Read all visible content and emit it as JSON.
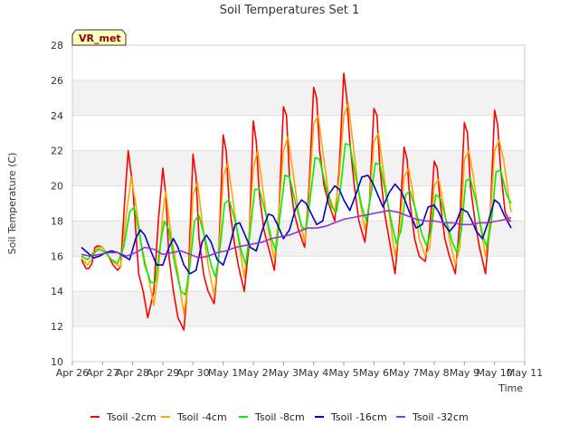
{
  "chart_data": {
    "type": "line",
    "title": "Soil Temperatures Set 1",
    "xlabel": "Time",
    "ylabel": "Soil Temperature (C)",
    "station_label": "VR_met",
    "ylim": [
      10,
      28
    ],
    "yticks": [
      10,
      12,
      14,
      16,
      18,
      20,
      22,
      24,
      26,
      28
    ],
    "xlim": [
      0,
      15
    ],
    "xticks": [
      "Apr 26",
      "Apr 27",
      "Apr 28",
      "Apr 29",
      "Apr 30",
      "May 1",
      "May 2",
      "May 3",
      "May 4",
      "May 5",
      "May 6",
      "May 7",
      "May 8",
      "May 9",
      "May 10",
      "May 11"
    ],
    "legend_position": "bottom",
    "grid": "alternating horizontal bands",
    "series": [
      {
        "name": "Tsoil -2cm",
        "color": "#ff0000",
        "x": [
          0.3,
          0.45,
          0.55,
          0.65,
          0.75,
          0.85,
          1.0,
          1.2,
          1.35,
          1.5,
          1.6,
          1.75,
          1.85,
          2.0,
          2.1,
          2.2,
          2.35,
          2.5,
          2.7,
          2.85,
          3.0,
          3.1,
          3.2,
          3.35,
          3.5,
          3.7,
          3.85,
          4.0,
          4.1,
          4.2,
          4.35,
          4.5,
          4.7,
          4.85,
          5.0,
          5.1,
          5.2,
          5.35,
          5.5,
          5.7,
          5.85,
          6.0,
          6.1,
          6.2,
          6.35,
          6.5,
          6.7,
          6.85,
          7.0,
          7.1,
          7.2,
          7.35,
          7.5,
          7.7,
          7.85,
          8.0,
          8.1,
          8.2,
          8.35,
          8.5,
          8.7,
          8.85,
          9.0,
          9.1,
          9.2,
          9.35,
          9.5,
          9.7,
          9.85,
          10.0,
          10.1,
          10.2,
          10.35,
          10.5,
          10.7,
          10.85,
          11.0,
          11.1,
          11.2,
          11.35,
          11.5,
          11.7,
          11.85,
          12.0,
          12.1,
          12.2,
          12.35,
          12.5,
          12.7,
          12.85,
          13.0,
          13.1,
          13.2,
          13.35,
          13.5,
          13.7,
          13.85,
          14.0,
          14.1,
          14.2,
          14.35,
          14.5,
          14.55
        ],
        "values": [
          15.8,
          15.3,
          15.3,
          15.6,
          16.5,
          16.6,
          16.5,
          16.0,
          15.5,
          15.2,
          15.4,
          19.5,
          22.0,
          20.0,
          17.5,
          15.0,
          14.0,
          12.5,
          14.0,
          18.0,
          21.0,
          19.5,
          16.0,
          14.0,
          12.5,
          11.8,
          15.0,
          21.8,
          20.5,
          17.0,
          15.0,
          14.0,
          13.3,
          16.0,
          22.9,
          22.0,
          19.0,
          17.0,
          15.5,
          14.0,
          16.5,
          23.7,
          22.5,
          19.5,
          17.5,
          16.5,
          15.2,
          18.5,
          24.5,
          24.0,
          20.5,
          18.5,
          17.5,
          16.5,
          20.0,
          25.6,
          25.0,
          22.0,
          20.0,
          19.0,
          18.0,
          21.0,
          26.4,
          25.0,
          22.5,
          20.0,
          18.0,
          16.8,
          19.0,
          24.4,
          24.0,
          21.0,
          18.5,
          17.0,
          15.0,
          18.0,
          22.2,
          21.5,
          19.0,
          17.0,
          16.0,
          15.7,
          17.5,
          21.4,
          21.0,
          19.0,
          17.0,
          16.0,
          15.0,
          18.0,
          23.6,
          23.0,
          20.0,
          18.0,
          16.5,
          15.0,
          18.0,
          24.3,
          23.5,
          21.0,
          18.5,
          18.0,
          18.0
        ]
      },
      {
        "name": "Tsoil -4cm",
        "color": "#ffa500",
        "x": [
          0.3,
          0.5,
          0.7,
          0.85,
          1.0,
          1.2,
          1.4,
          1.6,
          1.8,
          1.95,
          2.1,
          2.3,
          2.5,
          2.7,
          2.85,
          3.0,
          3.1,
          3.25,
          3.5,
          3.7,
          3.85,
          4.0,
          4.15,
          4.3,
          4.5,
          4.7,
          4.85,
          5.0,
          5.15,
          5.3,
          5.5,
          5.7,
          5.85,
          6.0,
          6.15,
          6.3,
          6.5,
          6.7,
          6.85,
          7.0,
          7.15,
          7.3,
          7.5,
          7.7,
          7.85,
          8.0,
          8.15,
          8.3,
          8.5,
          8.7,
          8.85,
          9.0,
          9.15,
          9.3,
          9.5,
          9.7,
          9.85,
          10.0,
          10.15,
          10.3,
          10.5,
          10.7,
          10.85,
          11.0,
          11.15,
          11.3,
          11.5,
          11.7,
          11.85,
          12.0,
          12.15,
          12.3,
          12.5,
          12.7,
          12.85,
          13.0,
          13.15,
          13.3,
          13.5,
          13.7,
          13.85,
          14.0,
          14.15,
          14.3,
          14.5,
          14.55
        ],
        "values": [
          15.9,
          15.5,
          16.0,
          16.5,
          16.5,
          16.0,
          15.6,
          15.4,
          18.5,
          20.5,
          19.0,
          16.5,
          15.0,
          13.2,
          15.0,
          18.5,
          19.7,
          17.5,
          15.0,
          12.7,
          14.5,
          19.5,
          20.2,
          18.0,
          15.5,
          13.8,
          16.0,
          20.5,
          21.3,
          19.5,
          17.0,
          14.8,
          17.0,
          21.0,
          22.0,
          20.0,
          17.5,
          15.8,
          18.5,
          22.0,
          22.8,
          21.0,
          18.5,
          16.8,
          19.5,
          23.5,
          24.0,
          22.0,
          19.5,
          18.5,
          20.5,
          24.0,
          24.7,
          22.5,
          19.5,
          17.5,
          19.0,
          22.5,
          23.0,
          21.0,
          18.5,
          16.0,
          17.5,
          20.5,
          21.0,
          19.5,
          17.0,
          16.0,
          16.5,
          20.0,
          20.4,
          19.0,
          17.0,
          15.5,
          16.5,
          21.5,
          22.0,
          20.5,
          18.0,
          16.0,
          18.0,
          22.0,
          22.6,
          21.5,
          19.0,
          18.5
        ]
      },
      {
        "name": "Tsoil -8cm",
        "color": "#00ee00",
        "x": [
          0.3,
          0.5,
          0.7,
          0.9,
          1.1,
          1.3,
          1.5,
          1.7,
          1.9,
          2.05,
          2.2,
          2.4,
          2.6,
          2.75,
          2.9,
          3.05,
          3.2,
          3.4,
          3.6,
          3.75,
          3.9,
          4.05,
          4.2,
          4.4,
          4.6,
          4.75,
          4.9,
          5.05,
          5.2,
          5.4,
          5.6,
          5.75,
          5.9,
          6.05,
          6.2,
          6.4,
          6.6,
          6.75,
          6.9,
          7.05,
          7.2,
          7.4,
          7.6,
          7.75,
          7.9,
          8.05,
          8.2,
          8.4,
          8.6,
          8.75,
          8.9,
          9.05,
          9.2,
          9.4,
          9.6,
          9.75,
          9.9,
          10.05,
          10.2,
          10.4,
          10.6,
          10.75,
          10.9,
          11.05,
          11.2,
          11.4,
          11.6,
          11.75,
          11.9,
          12.05,
          12.2,
          12.4,
          12.6,
          12.75,
          12.9,
          13.05,
          13.2,
          13.4,
          13.6,
          13.75,
          13.9,
          14.05,
          14.2,
          14.4,
          14.55
        ],
        "values": [
          16.0,
          15.8,
          16.2,
          16.4,
          16.2,
          15.8,
          15.6,
          16.5,
          18.5,
          18.8,
          17.5,
          15.5,
          14.5,
          14.5,
          16.5,
          18.0,
          17.5,
          15.5,
          14.0,
          13.8,
          15.5,
          18.0,
          18.3,
          17.0,
          15.5,
          14.8,
          16.5,
          19.0,
          19.2,
          18.0,
          16.3,
          15.5,
          17.5,
          19.8,
          19.8,
          18.5,
          17.0,
          16.3,
          18.5,
          20.6,
          20.5,
          19.0,
          17.7,
          17.5,
          19.5,
          21.6,
          21.5,
          20.0,
          18.8,
          18.5,
          20.0,
          22.4,
          22.3,
          20.5,
          18.8,
          18.0,
          19.5,
          21.3,
          21.2,
          19.5,
          17.8,
          16.7,
          17.5,
          19.5,
          19.7,
          18.5,
          17.2,
          16.6,
          17.5,
          19.5,
          19.3,
          18.0,
          16.8,
          16.2,
          17.5,
          20.3,
          20.4,
          19.0,
          17.2,
          16.5,
          18.0,
          20.8,
          20.9,
          19.5,
          19.0
        ]
      },
      {
        "name": "Tsoil -16cm",
        "color": "#0000cc",
        "x": [
          0.3,
          0.5,
          0.7,
          0.9,
          1.1,
          1.3,
          1.5,
          1.7,
          1.9,
          2.1,
          2.25,
          2.4,
          2.6,
          2.8,
          3.0,
          3.2,
          3.35,
          3.5,
          3.7,
          3.9,
          4.1,
          4.3,
          4.45,
          4.6,
          4.8,
          5.0,
          5.2,
          5.4,
          5.55,
          5.7,
          5.9,
          6.1,
          6.3,
          6.5,
          6.65,
          6.8,
          7.0,
          7.2,
          7.4,
          7.6,
          7.75,
          7.9,
          8.1,
          8.3,
          8.5,
          8.7,
          8.85,
          9.0,
          9.2,
          9.4,
          9.6,
          9.8,
          9.95,
          10.1,
          10.3,
          10.5,
          10.7,
          10.9,
          11.05,
          11.2,
          11.4,
          11.6,
          11.8,
          12.0,
          12.15,
          12.3,
          12.5,
          12.7,
          12.9,
          13.1,
          13.25,
          13.4,
          13.6,
          13.8,
          14.0,
          14.15,
          14.3,
          14.55
        ],
        "values": [
          16.5,
          16.2,
          15.9,
          16.0,
          16.2,
          16.3,
          16.2,
          16.0,
          15.8,
          17.0,
          17.5,
          17.2,
          16.3,
          15.5,
          15.5,
          16.5,
          17.0,
          16.5,
          15.5,
          15.0,
          15.2,
          16.8,
          17.2,
          16.8,
          15.8,
          15.5,
          16.5,
          17.8,
          17.9,
          17.3,
          16.5,
          16.3,
          17.5,
          18.4,
          18.3,
          17.8,
          17.0,
          17.5,
          18.7,
          19.2,
          19.0,
          18.5,
          17.8,
          18.0,
          19.5,
          20.0,
          19.8,
          19.2,
          18.6,
          19.5,
          20.5,
          20.6,
          20.2,
          19.6,
          18.8,
          19.6,
          20.1,
          19.7,
          19.1,
          18.4,
          17.6,
          17.8,
          18.8,
          18.9,
          18.5,
          17.9,
          17.4,
          17.8,
          18.7,
          18.5,
          18.0,
          17.4,
          17.0,
          18.0,
          19.2,
          19.0,
          18.4,
          17.6
        ]
      },
      {
        "name": "Tsoil -32cm",
        "color": "#9933cc",
        "x": [
          0.3,
          0.6,
          0.9,
          1.2,
          1.5,
          1.8,
          2.1,
          2.4,
          2.7,
          3.0,
          3.3,
          3.6,
          3.9,
          4.2,
          4.5,
          4.8,
          5.1,
          5.4,
          5.7,
          6.0,
          6.3,
          6.6,
          6.9,
          7.2,
          7.5,
          7.8,
          8.1,
          8.4,
          8.7,
          9.0,
          9.3,
          9.6,
          9.9,
          10.2,
          10.5,
          10.8,
          11.1,
          11.4,
          11.7,
          12.0,
          12.3,
          12.6,
          12.9,
          13.2,
          13.5,
          13.8,
          14.1,
          14.4,
          14.55
        ],
        "values": [
          16.1,
          16.0,
          16.1,
          16.2,
          16.2,
          16.0,
          16.2,
          16.5,
          16.4,
          16.1,
          16.2,
          16.3,
          16.1,
          15.9,
          16.0,
          16.2,
          16.3,
          16.5,
          16.6,
          16.7,
          16.8,
          17.0,
          17.1,
          17.2,
          17.4,
          17.6,
          17.6,
          17.7,
          17.9,
          18.1,
          18.2,
          18.3,
          18.4,
          18.5,
          18.6,
          18.5,
          18.3,
          18.1,
          18.0,
          18.0,
          17.9,
          17.9,
          17.8,
          17.8,
          17.9,
          17.9,
          18.0,
          18.1,
          18.2
        ]
      }
    ]
  }
}
